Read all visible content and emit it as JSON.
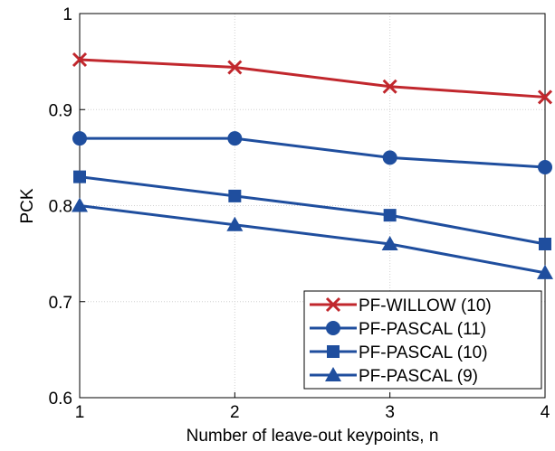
{
  "chart_data": {
    "type": "line",
    "x_label": "Number of leave-out keypoints, n",
    "y_label": "PCK",
    "x": [
      1,
      2,
      3,
      4
    ],
    "xlim": [
      1,
      4
    ],
    "xticks": [
      1,
      2,
      3,
      4
    ],
    "ylim": [
      0.6,
      1
    ],
    "yticks": [
      0.6,
      0.7,
      0.8,
      0.9,
      1
    ],
    "grid": true,
    "legend": "lower right",
    "series": [
      {
        "name": "PF-WILLOW (10)",
        "color": "#c1272d",
        "marker": "x",
        "values": [
          0.952,
          0.944,
          0.924,
          0.913
        ]
      },
      {
        "name": "PF-PASCAL (11)",
        "color": "#1f4e9e",
        "marker": "circle",
        "values": [
          0.87,
          0.87,
          0.85,
          0.84
        ]
      },
      {
        "name": "PF-PASCAL (10)",
        "color": "#1f4e9e",
        "marker": "square",
        "values": [
          0.83,
          0.81,
          0.79,
          0.76
        ]
      },
      {
        "name": "PF-PASCAL (9)",
        "color": "#1f4e9e",
        "marker": "triangle",
        "values": [
          0.8,
          0.78,
          0.76,
          0.73
        ]
      }
    ]
  }
}
